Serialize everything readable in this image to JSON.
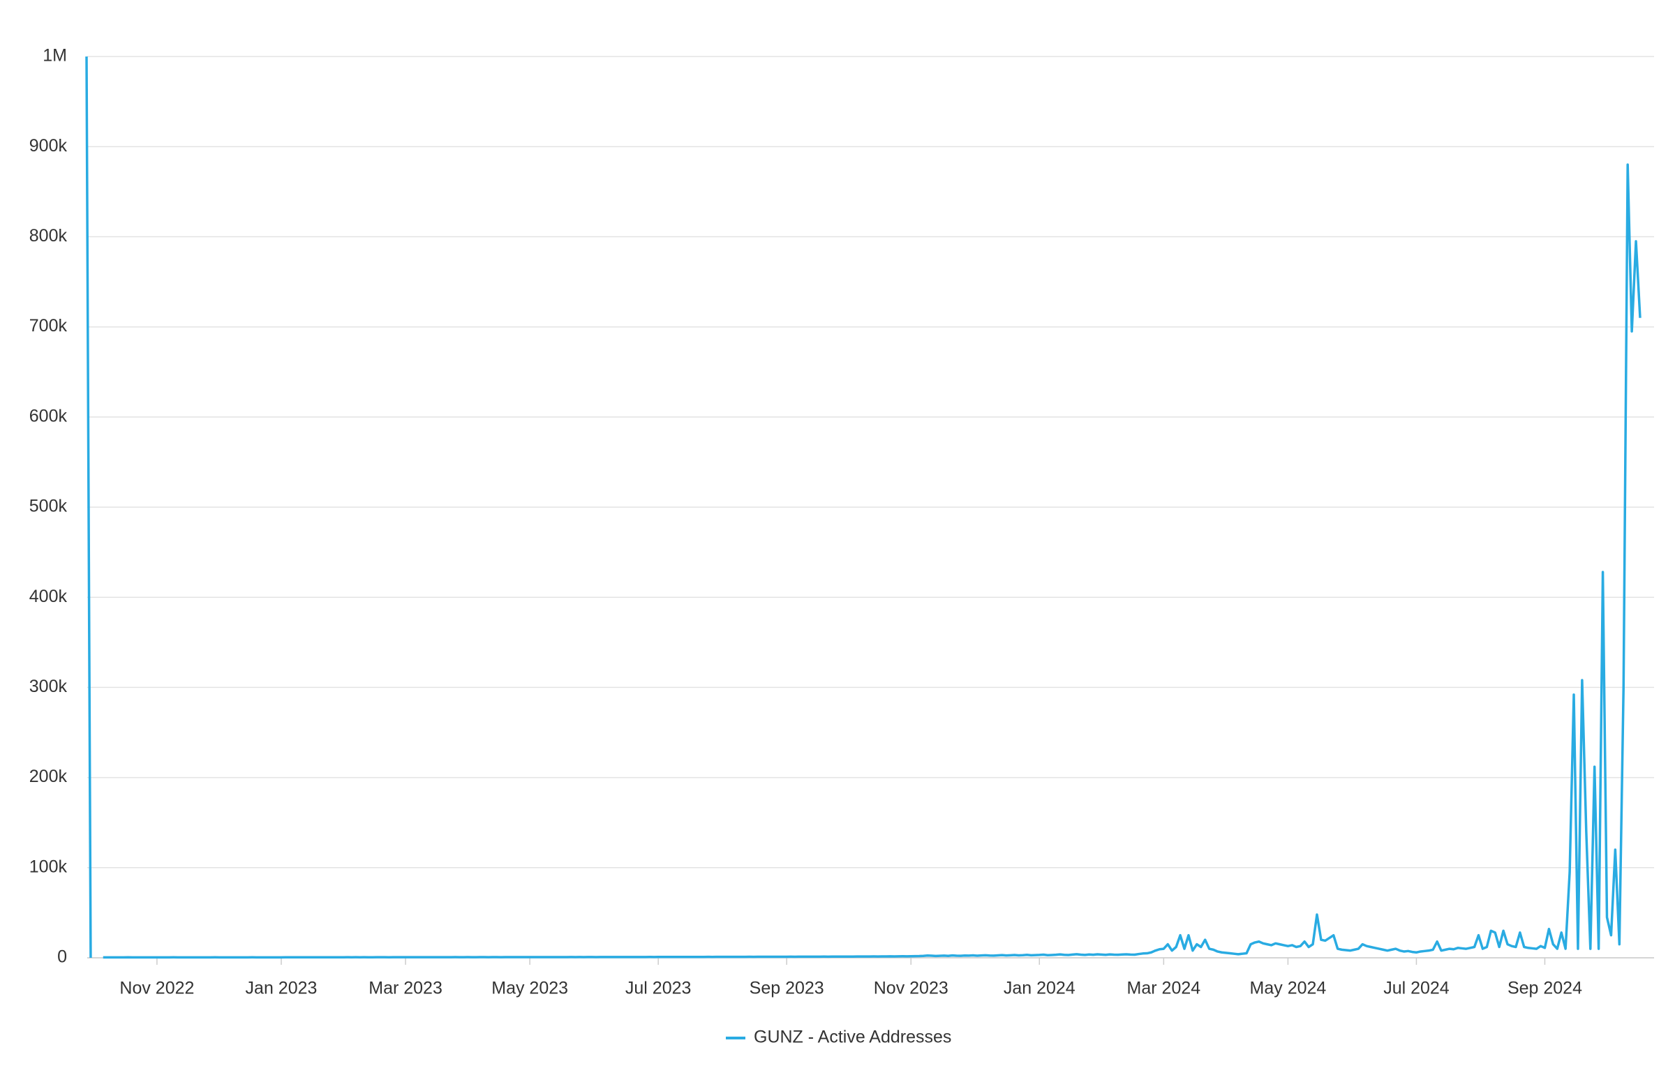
{
  "chart_data": {
    "type": "line",
    "categories": [
      null,
      null,
      null,
      null,
      null,
      null,
      null,
      null,
      null,
      null,
      null,
      null,
      null,
      null,
      null,
      null,
      null,
      "Nov 2022",
      null,
      null,
      null,
      null,
      null,
      null,
      null,
      null,
      null,
      null,
      null,
      null,
      null,
      null,
      null,
      null,
      null,
      null,
      null,
      null,
      null,
      null,
      null,
      null,
      null,
      null,
      null,
      null,
      null,
      "Jan 2023",
      null,
      null,
      null,
      null,
      null,
      null,
      null,
      null,
      null,
      null,
      null,
      null,
      null,
      null,
      null,
      null,
      null,
      null,
      null,
      null,
      null,
      null,
      null,
      null,
      null,
      null,
      null,
      null,
      null,
      "Mar 2023",
      null,
      null,
      null,
      null,
      null,
      null,
      null,
      null,
      null,
      null,
      null,
      null,
      null,
      null,
      null,
      null,
      null,
      null,
      null,
      null,
      null,
      null,
      null,
      null,
      null,
      null,
      null,
      null,
      null,
      "May 2023",
      null,
      null,
      null,
      null,
      null,
      null,
      null,
      null,
      null,
      null,
      null,
      null,
      null,
      null,
      null,
      null,
      null,
      null,
      null,
      null,
      null,
      null,
      null,
      null,
      null,
      null,
      null,
      null,
      null,
      null,
      "Jul 2023",
      null,
      null,
      null,
      null,
      null,
      null,
      null,
      null,
      null,
      null,
      null,
      null,
      null,
      null,
      null,
      null,
      null,
      null,
      null,
      null,
      null,
      null,
      null,
      null,
      null,
      null,
      null,
      null,
      null,
      null,
      "Sep 2023",
      null,
      null,
      null,
      null,
      null,
      null,
      null,
      null,
      null,
      null,
      null,
      null,
      null,
      null,
      null,
      null,
      null,
      null,
      null,
      null,
      null,
      null,
      null,
      null,
      null,
      null,
      null,
      null,
      null,
      "Nov 2023",
      null,
      null,
      null,
      null,
      null,
      null,
      null,
      null,
      null,
      null,
      null,
      null,
      null,
      null,
      null,
      null,
      null,
      null,
      null,
      null,
      null,
      null,
      null,
      null,
      null,
      null,
      null,
      null,
      null,
      null,
      "Jan 2024",
      null,
      null,
      null,
      null,
      null,
      null,
      null,
      null,
      null,
      null,
      null,
      null,
      null,
      null,
      null,
      null,
      null,
      null,
      null,
      null,
      null,
      null,
      null,
      null,
      null,
      null,
      null,
      null,
      null,
      "Mar 2024",
      null,
      null,
      null,
      null,
      null,
      null,
      null,
      null,
      null,
      null,
      null,
      null,
      null,
      null,
      null,
      null,
      null,
      null,
      null,
      null,
      null,
      null,
      null,
      null,
      null,
      null,
      null,
      null,
      null,
      "May 2024",
      null,
      null,
      null,
      null,
      null,
      null,
      null,
      null,
      null,
      null,
      null,
      null,
      null,
      null,
      null,
      null,
      null,
      null,
      null,
      null,
      null,
      null,
      null,
      null,
      null,
      null,
      null,
      null,
      null,
      null,
      "Jul 2024",
      null,
      null,
      null,
      null,
      null,
      null,
      null,
      null,
      null,
      null,
      null,
      null,
      null,
      null,
      null,
      null,
      null,
      null,
      null,
      null,
      null,
      null,
      null,
      null,
      null,
      null,
      null,
      null,
      null,
      null,
      "Sep 2024",
      null,
      null,
      null,
      null,
      null,
      null,
      null,
      null,
      null,
      null,
      null,
      null,
      null,
      null,
      null,
      null,
      null,
      null,
      null,
      null,
      null,
      null,
      null
    ],
    "series": [
      {
        "name": "GUNZ - Active Addresses",
        "color": "#29abe2",
        "values": [
          1000000,
          0,
          null,
          null,
          520,
          480,
          510,
          530,
          490,
          500,
          540,
          470,
          510,
          520,
          500,
          490,
          530,
          510,
          480,
          500,
          520,
          540,
          500,
          490,
          510,
          530,
          470,
          500,
          520,
          510,
          490,
          540,
          500,
          520,
          510,
          480,
          530,
          500,
          490,
          510,
          540,
          520,
          500,
          470,
          510,
          530,
          500,
          520,
          560,
          540,
          580,
          550,
          600,
          570,
          590,
          620,
          580,
          600,
          610,
          590,
          630,
          600,
          620,
          650,
          610,
          640,
          620,
          660,
          630,
          600,
          650,
          670,
          640,
          620,
          680,
          650,
          660,
          700,
          670,
          640,
          690,
          680,
          700,
          660,
          710,
          690,
          720,
          700,
          680,
          730,
          710,
          700,
          740,
          720,
          690,
          750,
          730,
          710,
          760,
          740,
          720,
          770,
          750,
          730,
          780,
          760,
          740,
          790,
          770,
          800,
          780,
          760,
          810,
          790,
          820,
          800,
          780,
          830,
          810,
          840,
          820,
          850,
          830,
          810,
          860,
          840,
          870,
          850,
          880,
          860,
          890,
          870,
          900,
          880,
          910,
          890,
          920,
          900,
          940,
          920,
          950,
          930,
          960,
          940,
          980,
          960,
          1000,
          980,
          1010,
          990,
          1030,
          1010,
          1050,
          1030,
          1060,
          1040,
          1080,
          1060,
          1100,
          1080,
          1120,
          1100,
          1140,
          1120,
          1160,
          1140,
          1180,
          1160,
          1200,
          1180,
          1220,
          1200,
          1250,
          1230,
          1270,
          1250,
          1300,
          1280,
          1320,
          1300,
          1350,
          1330,
          1380,
          1360,
          1400,
          1380,
          1430,
          1410,
          1460,
          1440,
          1500,
          1480,
          1550,
          1520,
          1600,
          1580,
          1650,
          1700,
          1680,
          1750,
          1800,
          1900,
          2100,
          2500,
          2300,
          2000,
          2200,
          2400,
          2100,
          2600,
          2300,
          2200,
          2500,
          2400,
          2700,
          2300,
          2600,
          2800,
          2500,
          2400,
          2700,
          3000,
          2600,
          2800,
          3100,
          2700,
          2900,
          3300,
          2800,
          3000,
          3200,
          3500,
          2900,
          3100,
          3400,
          3800,
          3300,
          3100,
          3600,
          4000,
          3500,
          3200,
          3700,
          3400,
          3900,
          3600,
          3300,
          3800,
          3500,
          3400,
          3700,
          3900,
          3600,
          3500,
          4200,
          4800,
          5000,
          6000,
          8000,
          9500,
          10000,
          15000,
          8000,
          12000,
          25000,
          10000,
          25000,
          8000,
          15000,
          12000,
          20000,
          10000,
          9000,
          7000,
          6000,
          5500,
          5000,
          4500,
          4000,
          4500,
          5000,
          15000,
          17000,
          18000,
          16000,
          15000,
          14000,
          16000,
          15000,
          14000,
          13000,
          14000,
          12000,
          13000,
          18000,
          12000,
          15000,
          48000,
          20000,
          19000,
          22000,
          25000,
          10000,
          9000,
          8500,
          8000,
          9000,
          10000,
          15000,
          13000,
          12000,
          11000,
          10000,
          9000,
          8000,
          9000,
          10000,
          8000,
          7000,
          7500,
          6500,
          6000,
          7000,
          7500,
          8000,
          9000,
          18000,
          8000,
          9000,
          10000,
          9500,
          11000,
          10500,
          10000,
          11000,
          12000,
          25000,
          10000,
          12000,
          30000,
          28000,
          12000,
          30000,
          15000,
          13000,
          12000,
          28000,
          12000,
          11000,
          10500,
          10000,
          13000,
          11000,
          32000,
          15000,
          10000,
          28000,
          10000,
          95000,
          292000,
          10000,
          308000,
          140000,
          10000,
          212000,
          10000,
          428000,
          45000,
          25000,
          120000,
          15000,
          300000,
          880000,
          695000,
          795000,
          710000
        ]
      }
    ],
    "ylim": [
      0,
      1000000
    ],
    "yticks": [
      0,
      {
        "value": 100000,
        "label": "100k"
      },
      {
        "value": 200000,
        "label": "200k"
      },
      {
        "value": 300000,
        "label": "300k"
      },
      {
        "value": 400000,
        "label": "400k"
      },
      {
        "value": 500000,
        "label": "500k"
      },
      {
        "value": 600000,
        "label": "600k"
      },
      {
        "value": 700000,
        "label": "700k"
      },
      {
        "value": 800000,
        "label": "800k"
      },
      {
        "value": 900000,
        "label": "900k"
      },
      {
        "value": 1000000,
        "label": "1M"
      }
    ],
    "grid": true,
    "legend": "bottom"
  }
}
